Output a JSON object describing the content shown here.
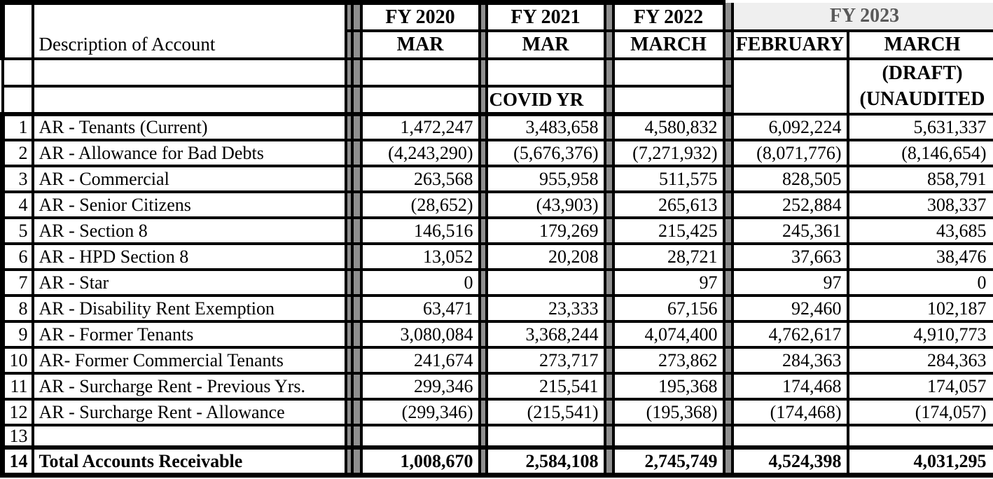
{
  "header": {
    "description_label": "Description of Account",
    "fy2020": {
      "label": "FY 2020",
      "month": "MAR"
    },
    "fy2021": {
      "label": "FY 2021",
      "month": "MAR",
      "note": "COVID YR"
    },
    "fy2022": {
      "label": "FY 2022",
      "month": "MARCH"
    },
    "fy2023": {
      "label": "FY 2023",
      "month_feb": "FEBRUARY",
      "month_mar": "MARCH",
      "mar_note1": "(DRAFT)",
      "mar_note2": "(UNAUDITED"
    }
  },
  "rows": [
    {
      "num": "1",
      "desc": "AR - Tenants (Current)",
      "values": [
        "1,472,247",
        "3,483,658",
        "4,580,832",
        "6,092,224",
        "5,631,337"
      ],
      "total": false
    },
    {
      "num": "2",
      "desc": "AR - Allowance for Bad Debts",
      "values": [
        "(4,243,290)",
        "(5,676,376)",
        "(7,271,932)",
        "(8,071,776)",
        "(8,146,654)"
      ],
      "total": false
    },
    {
      "num": "3",
      "desc": "AR - Commercial",
      "values": [
        "263,568",
        "955,958",
        "511,575",
        "828,505",
        "858,791"
      ],
      "total": false
    },
    {
      "num": "4",
      "desc": "AR - Senior Citizens",
      "values": [
        "(28,652)",
        "(43,903)",
        "265,613",
        "252,884",
        "308,337"
      ],
      "total": false
    },
    {
      "num": "5",
      "desc": "AR - Section 8",
      "values": [
        "146,516",
        "179,269",
        "215,425",
        "245,361",
        "43,685"
      ],
      "total": false
    },
    {
      "num": "6",
      "desc": "AR - HPD Section 8",
      "values": [
        "13,052",
        "20,208",
        "28,721",
        "37,663",
        "38,476"
      ],
      "total": false
    },
    {
      "num": "7",
      "desc": "AR - Star",
      "values": [
        "0",
        "",
        "97",
        "97",
        "0"
      ],
      "total": false
    },
    {
      "num": "8",
      "desc": "AR - Disability Rent Exemption",
      "values": [
        "63,471",
        "23,333",
        "67,156",
        "92,460",
        "102,187"
      ],
      "total": false
    },
    {
      "num": "9",
      "desc": "AR - Former Tenants",
      "values": [
        "3,080,084",
        "3,368,244",
        "4,074,400",
        "4,762,617",
        "4,910,773"
      ],
      "total": false
    },
    {
      "num": "10",
      "desc": "AR- Former Commercial Tenants",
      "values": [
        "241,674",
        "273,717",
        "273,862",
        "284,363",
        "284,363"
      ],
      "total": false
    },
    {
      "num": "11",
      "desc": "AR - Surcharge Rent - Previous Yrs.",
      "values": [
        "299,346",
        "215,541",
        "195,368",
        "174,468",
        "174,057"
      ],
      "total": false
    },
    {
      "num": "12",
      "desc": "AR - Surcharge Rent - Allowance",
      "values": [
        "(299,346)",
        "(215,541)",
        "(195,368)",
        "(174,468)",
        "(174,057)"
      ],
      "total": false
    },
    {
      "num": "13",
      "desc": "",
      "values": [
        "",
        "",
        "",
        "",
        ""
      ],
      "total": false
    },
    {
      "num": "14",
      "desc": "Total Accounts Receivable",
      "values": [
        "1,008,670",
        "2,584,108",
        "2,745,749",
        "4,524,398",
        "4,031,295"
      ],
      "total": true
    }
  ],
  "colors": {
    "grid": "#000000",
    "separator_gray": "#8f8f8f",
    "fy2023_band_bg": "#efefef",
    "fy2023_text": "#595959"
  }
}
